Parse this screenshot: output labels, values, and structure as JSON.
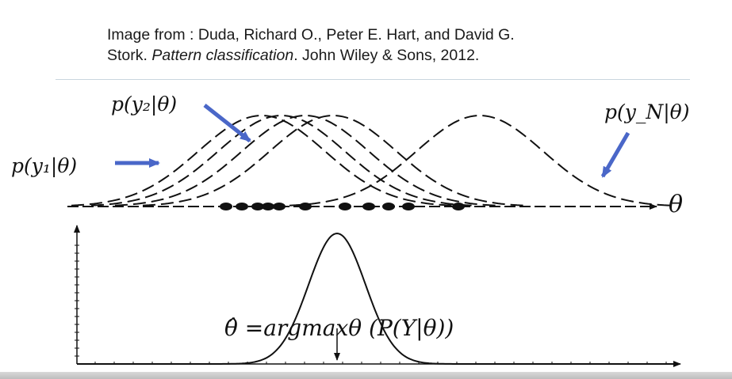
{
  "citation": {
    "line1": "Image from : Duda, Richard O., Peter E. Hart, and David G.",
    "line2_prefix": "Stork. ",
    "line2_title": "Pattern classification",
    "line2_suffix": ". John Wiley & Sons, 2012."
  },
  "labels": {
    "p_y1": "p(y₁|θ)",
    "p_y2": "p(y₂|θ)",
    "p_yN": "p(y_N|θ)",
    "theta_axis": "θ",
    "estimator": "θ̂ =argmaxθ (P(Y|θ))"
  },
  "colors": {
    "arrow": "#4a67c8",
    "curve": "#111111",
    "axis": "#111111",
    "rule": "#c9d6de"
  },
  "figure": {
    "likelihood_curves": {
      "means": [
        330,
        355,
        385,
        420,
        605
      ],
      "sigma": 80
    },
    "samples": [
      285,
      305,
      325,
      338,
      352,
      385,
      435,
      465,
      490,
      515,
      578
    ],
    "posterior": {
      "mean": 425,
      "sigma": 36
    }
  }
}
